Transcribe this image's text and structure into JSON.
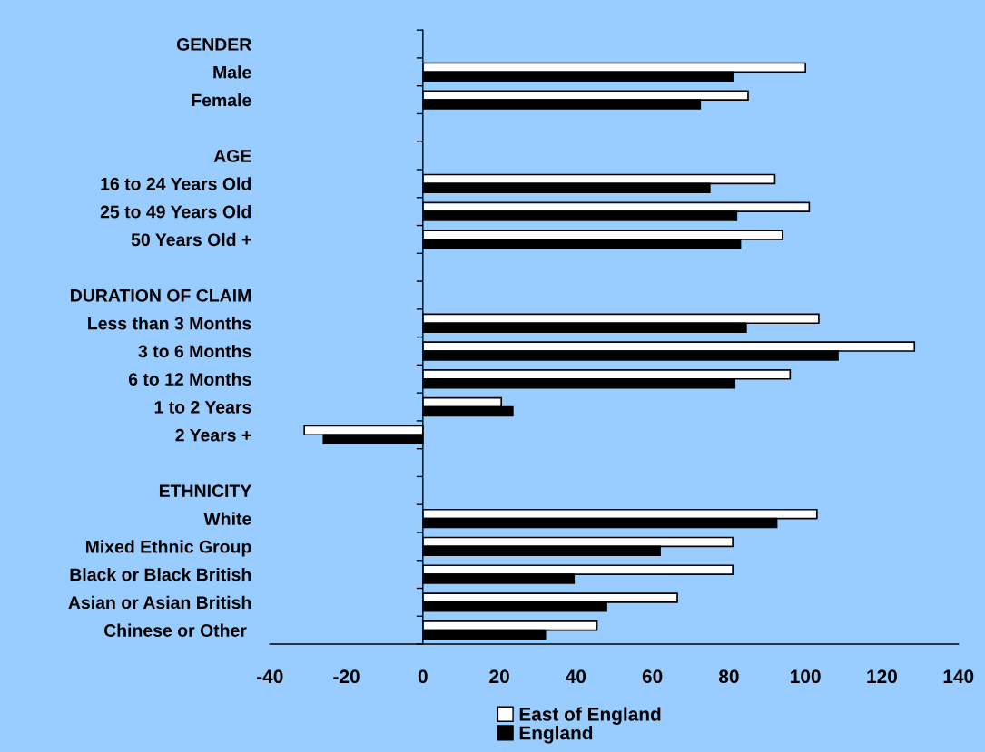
{
  "chart_data": {
    "type": "bar",
    "orientation": "horizontal",
    "categories": [
      "GENDER",
      "Male",
      "Female",
      null,
      "AGE",
      "16 to 24 Years Old",
      "25 to 49 Years Old",
      "50 Years Old +",
      null,
      "DURATION OF CLAIM",
      "Less than 3 Months",
      "3 to 6 Months",
      "6 to 12 Months",
      "1 to 2 Years",
      "2 Years +",
      null,
      "ETHNICITY",
      "White",
      "Mixed Ethnic Group",
      "Black or Black British",
      "Asian or Asian British",
      "Chinese or Other "
    ],
    "series": [
      {
        "name": "East of England",
        "color": "#ffffff",
        "values": [
          null,
          100,
          85,
          null,
          null,
          92,
          101,
          94,
          null,
          null,
          103.5,
          128.5,
          96,
          20.5,
          -31,
          null,
          null,
          103,
          81,
          81,
          66.5,
          45.5
        ]
      },
      {
        "name": "England",
        "color": "#000000",
        "values": [
          null,
          81,
          72.5,
          null,
          null,
          75,
          82,
          83,
          null,
          null,
          84.5,
          108.5,
          81.5,
          23.5,
          -26,
          null,
          null,
          92.5,
          62,
          39.5,
          48,
          32
        ]
      }
    ],
    "xlim": [
      -40,
      140
    ],
    "xticks": [
      -40,
      -20,
      0,
      20,
      40,
      60,
      80,
      100,
      120,
      140
    ],
    "legend": "bottom"
  }
}
